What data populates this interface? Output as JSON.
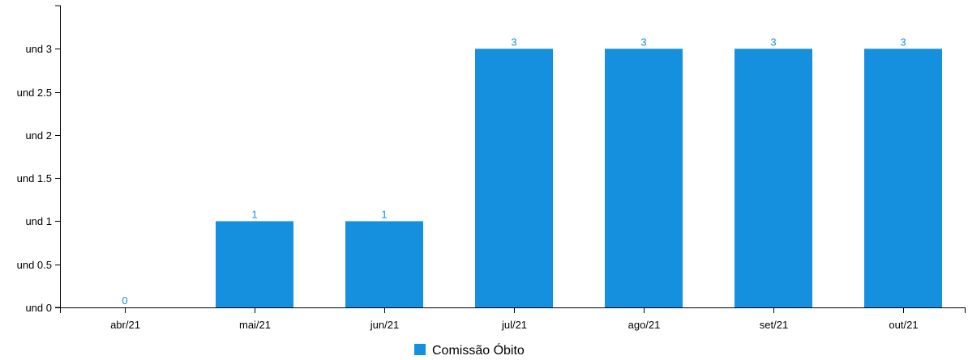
{
  "chart_data": {
    "type": "bar",
    "categories": [
      "abr/21",
      "mai/21",
      "jun/21",
      "jul/21",
      "ago/21",
      "set/21",
      "out/21"
    ],
    "series": [
      {
        "name": "Comissão Óbito",
        "values": [
          0,
          1,
          1,
          3,
          3,
          3,
          3
        ],
        "color": "#1590de"
      }
    ],
    "y_tick_prefix": "und ",
    "y_ticks": [
      0,
      0.5,
      1,
      1.5,
      2,
      2.5,
      3
    ],
    "ylim": [
      0,
      3.5
    ],
    "grid": false,
    "legend_position": "bottom-center",
    "data_label_color": "#1590de",
    "axis_color": "#000000"
  }
}
